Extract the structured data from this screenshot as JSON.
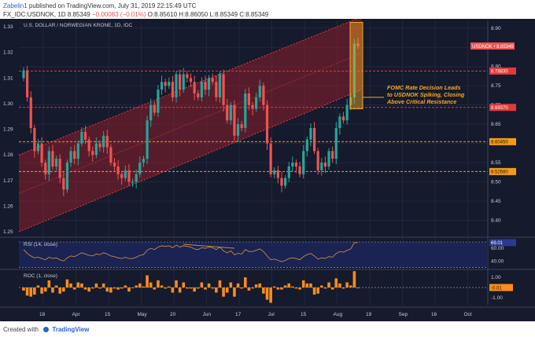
{
  "header": {
    "user": "Zabelin1",
    "published": "published on TradingView.com, July 31, 2019 22:15:49 UTC",
    "symbol": "FX_IDC:USDNOK, 1D",
    "price": "8.85349",
    "change": "−0.00083 (−0.01%)",
    "ohlc": "O:8.85610 H:8.86050 L:8.85349 C:8.85349"
  },
  "footer": {
    "created_with": "Created with",
    "brand": "TradingView"
  },
  "colors": {
    "background": "#151a2d",
    "grid": "#1f2740",
    "up": "#26a69a",
    "down": "#ef5350",
    "channel_fill": "#8e1f2a",
    "resistance": "#e03a3a",
    "support": "#f39c12",
    "annotation": "#f7a823",
    "rsi_line": "#c48a3a",
    "rsi_band": "#1b2557",
    "roc_bar": "#ff8c1a",
    "axis_text": "#c8ccd6"
  },
  "chart_data": [
    {
      "type": "candlestick",
      "title": "U.S. DOLLAR / NORWEGIAN KRONE, 1D, IDC",
      "time_axis_labels": [
        "18",
        "Apr",
        "15",
        "May",
        "20",
        "Jun",
        "17",
        "Jul",
        "15",
        "Aug",
        "19",
        "Sep",
        "16",
        "Oct"
      ],
      "left_axis_ticks": [
        1.25,
        1.26,
        1.27,
        1.28,
        1.29,
        1.3,
        1.31,
        1.32,
        1.33
      ],
      "right_axis_ticks": [
        8.4,
        8.45,
        8.5,
        8.55,
        8.6,
        8.65,
        8.7,
        8.75,
        8.8,
        8.85,
        8.9
      ],
      "ylim": [
        8.36,
        8.92
      ],
      "closes": [
        8.79,
        8.72,
        8.64,
        8.58,
        8.6,
        8.55,
        8.52,
        8.58,
        8.54,
        8.56,
        8.51,
        8.48,
        8.55,
        8.58,
        8.56,
        8.6,
        8.63,
        8.61,
        8.58,
        8.57,
        8.6,
        8.59,
        8.62,
        8.59,
        8.55,
        8.54,
        8.52,
        8.51,
        8.53,
        8.5,
        8.5,
        8.52,
        8.55,
        8.56,
        8.66,
        8.7,
        8.68,
        8.74,
        8.76,
        8.75,
        8.76,
        8.72,
        8.78,
        8.74,
        8.78,
        8.77,
        8.76,
        8.73,
        8.72,
        8.76,
        8.74,
        8.77,
        8.76,
        8.72,
        8.78,
        8.7,
        8.66,
        8.7,
        8.62,
        8.65,
        8.64,
        8.73,
        8.7,
        8.69,
        8.72,
        8.75,
        8.7,
        8.6,
        8.52,
        8.53,
        8.51,
        8.49,
        8.51,
        8.54,
        8.55,
        8.54,
        8.52,
        8.58,
        8.61,
        8.64,
        8.58,
        8.53,
        8.55,
        8.54,
        8.58,
        8.56,
        8.64,
        8.67,
        8.66,
        8.7,
        8.72,
        8.86,
        8.85349
      ],
      "levels": [
        {
          "label": "USDNOK • 8.85349",
          "value": 8.85349,
          "style": "price"
        },
        {
          "label": "8.78830",
          "value": 8.7883,
          "style": "resistance"
        },
        {
          "label": "8.69370",
          "value": 8.6937,
          "style": "resistance"
        },
        {
          "label": "8.60450",
          "value": 8.6045,
          "style": "support"
        },
        {
          "label": "8.52680",
          "value": 8.5268,
          "style": "support"
        }
      ],
      "channel": {
        "lower_start": 8.37,
        "lower_end": 8.74,
        "upper_start": 8.57,
        "upper_end": 8.93
      },
      "annotation": {
        "lines": [
          "FOMC Rate Decision Leads",
          "to USDNOK Spiking, Closing",
          "Above Critical Resistance"
        ]
      }
    },
    {
      "type": "line",
      "title": "RSI (14, close)",
      "yticks": [
        40.0,
        60.0
      ],
      "ylim": [
        28,
        75
      ],
      "last_value_label": "69.01",
      "values": [
        58,
        52,
        48,
        45,
        46,
        44,
        42,
        46,
        44,
        45,
        42,
        40,
        45,
        48,
        47,
        50,
        53,
        51,
        49,
        48,
        51,
        50,
        53,
        51,
        48,
        47,
        45,
        44,
        46,
        44,
        44,
        46,
        49,
        50,
        57,
        60,
        58,
        62,
        64,
        63,
        64,
        61,
        65,
        62,
        64,
        63,
        62,
        59,
        58,
        61,
        60,
        62,
        61,
        58,
        62,
        56,
        53,
        56,
        50,
        52,
        51,
        58,
        55,
        55,
        57,
        59,
        55,
        48,
        42,
        43,
        41,
        39,
        41,
        44,
        45,
        44,
        42,
        47,
        50,
        52,
        48,
        43,
        45,
        44,
        47,
        46,
        52,
        55,
        54,
        57,
        59,
        69,
        69.01
      ]
    },
    {
      "type": "bar",
      "title": "ROC (1, close)",
      "yticks": [
        1.0,
        -1.0
      ],
      "ylim": [
        -1.7,
        1.7
      ],
      "last_value_label": "-0.01",
      "values": [
        -0.3,
        -0.8,
        -0.9,
        -0.7,
        0.2,
        -0.6,
        -0.4,
        0.7,
        -0.5,
        0.2,
        -0.6,
        -0.4,
        0.8,
        0.4,
        -0.2,
        0.5,
        0.4,
        -0.2,
        -0.4,
        -0.1,
        0.4,
        -0.1,
        0.4,
        -0.4,
        -0.5,
        -0.1,
        -0.2,
        -0.1,
        0.2,
        -0.4,
        0.0,
        0.2,
        0.4,
        0.1,
        1.2,
        0.5,
        -0.2,
        0.7,
        0.2,
        -0.1,
        0.1,
        -0.5,
        0.7,
        -0.5,
        0.5,
        -0.1,
        -0.1,
        -0.4,
        -0.1,
        0.5,
        -0.2,
        0.4,
        -0.1,
        -0.5,
        0.7,
        -0.9,
        -0.5,
        0.5,
        -0.9,
        0.4,
        -0.1,
        1.0,
        -0.3,
        -0.1,
        0.3,
        0.4,
        -0.6,
        -1.2,
        -1.5,
        0.1,
        -0.2,
        -0.2,
        0.2,
        0.4,
        0.1,
        -0.1,
        -0.2,
        0.7,
        0.4,
        0.4,
        -0.7,
        -0.6,
        0.2,
        -0.1,
        0.5,
        -0.2,
        0.9,
        0.4,
        -0.1,
        0.5,
        0.2,
        1.6,
        -0.01
      ]
    }
  ]
}
